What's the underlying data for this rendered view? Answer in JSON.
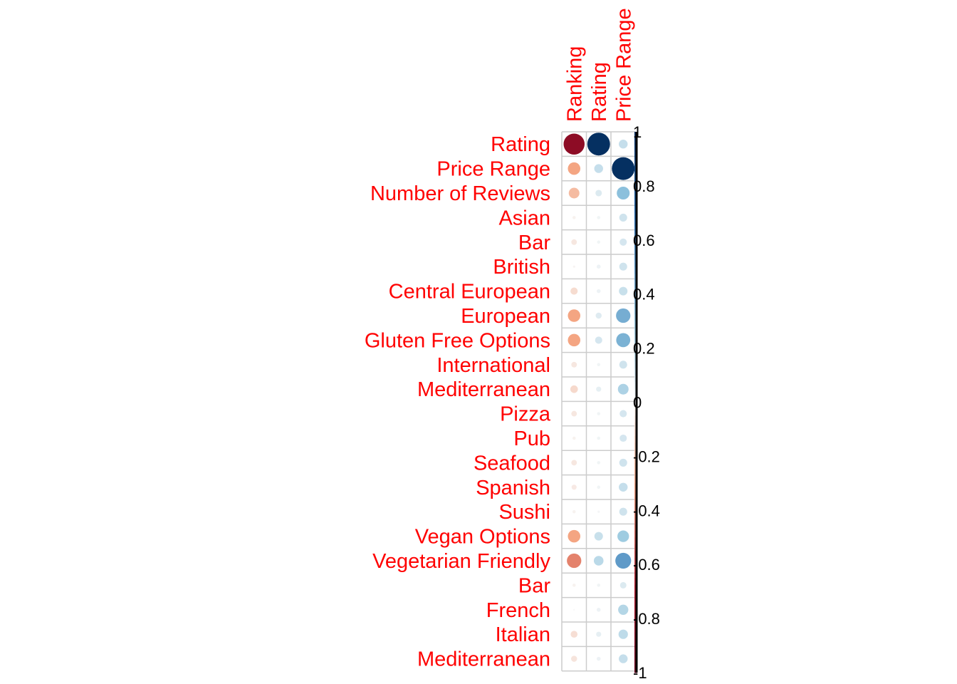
{
  "chart_data": {
    "type": "heatmap",
    "subtype": "correlation-circle-plot",
    "columns": [
      "Ranking",
      "Rating",
      "Price Range"
    ],
    "rows": [
      "Rating",
      "Price Range",
      "Number of Reviews",
      "Asian",
      "Bar",
      "British",
      "Central European",
      "European",
      "Gluten Free Options",
      "International",
      "Mediterranean",
      "Pizza",
      "Pub",
      "Seafood",
      "Spanish",
      "Sushi",
      "Vegan Options",
      "Vegetarian Friendly",
      "Bar",
      "French",
      "Italian",
      "Mediterranean"
    ],
    "values": [
      [
        -0.85,
        1.0,
        0.15
      ],
      [
        -0.3,
        0.15,
        1.0
      ],
      [
        -0.22,
        0.08,
        0.32
      ],
      [
        -0.02,
        0.02,
        0.12
      ],
      [
        -0.06,
        0.02,
        0.1
      ],
      [
        -0.01,
        0.03,
        0.12
      ],
      [
        -0.1,
        0.03,
        0.14
      ],
      [
        -0.3,
        0.07,
        0.4
      ],
      [
        -0.3,
        0.1,
        0.38
      ],
      [
        -0.06,
        0.02,
        0.12
      ],
      [
        -0.11,
        0.05,
        0.22
      ],
      [
        -0.06,
        0.02,
        0.1
      ],
      [
        -0.02,
        0.02,
        0.1
      ],
      [
        -0.06,
        0.02,
        0.12
      ],
      [
        -0.05,
        0.02,
        0.15
      ],
      [
        -0.02,
        0.01,
        0.12
      ],
      [
        -0.3,
        0.14,
        0.26
      ],
      [
        -0.4,
        0.18,
        0.48
      ],
      [
        -0.02,
        0.02,
        0.08
      ],
      [
        0.0,
        0.03,
        0.2
      ],
      [
        -0.09,
        0.05,
        0.17
      ],
      [
        -0.07,
        0.03,
        0.15
      ]
    ],
    "colorbar": {
      "ticks": [
        "1",
        "0.8",
        "0.6",
        "0.4",
        "0.2",
        "0",
        "-0.2",
        "-0.4",
        "-0.6",
        "-0.8",
        "-1"
      ],
      "range": [
        -1,
        1
      ],
      "colors": {
        "strong_negative": "#67001f",
        "negative": "#b2182b",
        "light_negative": "#f4a582",
        "neutral": "#f7f7f7",
        "light_positive": "#92c5de",
        "positive": "#2166ac",
        "strong_positive": "#053061"
      }
    },
    "label_color": "#ff0000",
    "grid_color": "#cccccc"
  }
}
